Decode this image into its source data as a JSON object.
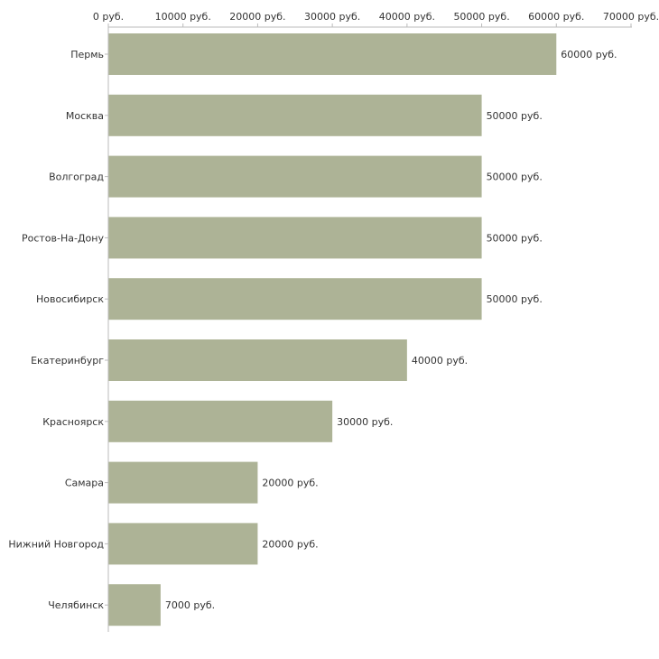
{
  "chart_data": {
    "type": "bar",
    "orientation": "horizontal",
    "title": "",
    "xlabel": "",
    "ylabel": "",
    "categories": [
      "Пермь",
      "Москва",
      "Волгоград",
      "Ростов-На-Дону",
      "Новосибирск",
      "Екатеринбург",
      "Красноярск",
      "Самара",
      "Нижний Новгород",
      "Челябинск"
    ],
    "values": [
      60000,
      50000,
      50000,
      50000,
      50000,
      40000,
      30000,
      20000,
      20000,
      7000
    ],
    "value_labels": [
      "60000 руб.",
      "50000 руб.",
      "50000 руб.",
      "50000 руб.",
      "50000 руб.",
      "40000 руб.",
      "30000 руб.",
      "20000 руб.",
      "20000 руб.",
      "7000 руб."
    ],
    "xlim": [
      0,
      70000
    ],
    "x_ticks": [
      0,
      10000,
      20000,
      30000,
      40000,
      50000,
      60000,
      70000
    ],
    "x_tick_labels": [
      "0 руб.",
      "10000 руб.",
      "20000 руб.",
      "30000 руб.",
      "40000 руб.",
      "50000 руб.",
      "60000 руб.",
      "70000 руб."
    ],
    "axis_position": "top",
    "grid": false,
    "bar_color": "#adb396",
    "axis_color": "#bbbbbb"
  }
}
